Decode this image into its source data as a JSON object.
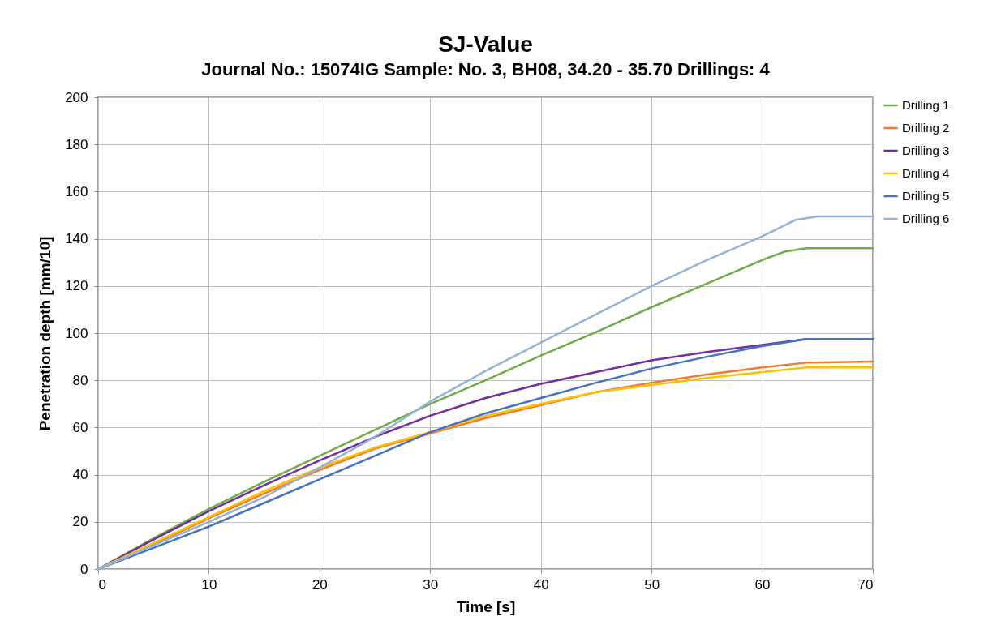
{
  "chart_data": {
    "type": "line",
    "title": "SJ-Value",
    "subtitle": "Journal No.: 15074IG  Sample: No. 3, BH08, 34.20 - 35.70  Drillings: 4",
    "xlabel": "Time [s]",
    "ylabel": "Penetration depth [mm/10]",
    "xlim": [
      0,
      70
    ],
    "xticks": [
      0,
      10,
      20,
      30,
      40,
      50,
      60,
      70
    ],
    "ylim": [
      0,
      200
    ],
    "yticks": [
      0,
      20,
      40,
      60,
      80,
      100,
      120,
      140,
      160,
      180,
      200
    ],
    "grid": true,
    "legend": "right",
    "marker": "none",
    "line_style": "solid",
    "series": [
      {
        "name": "Drilling 1",
        "color": "#70ad47",
        "x": [
          0,
          5,
          10,
          15,
          20,
          25,
          30,
          35,
          40,
          45,
          50,
          55,
          60,
          62,
          64,
          70
        ],
        "values": [
          0,
          13,
          25.5,
          37,
          48,
          59,
          70,
          80,
          90.5,
          100.5,
          111,
          121,
          131,
          134.5,
          136,
          136
        ]
      },
      {
        "name": "Drilling 2",
        "color": "#ed7d31",
        "x": [
          0,
          5,
          10,
          15,
          20,
          25,
          30,
          35,
          40,
          45,
          50,
          55,
          60,
          64,
          70
        ],
        "values": [
          0,
          10.5,
          21.5,
          32,
          42,
          51,
          57.5,
          64,
          69.5,
          75,
          79,
          82.5,
          85.5,
          87.5,
          88
        ]
      },
      {
        "name": "Drilling 3",
        "color": "#7030a0",
        "x": [
          0,
          5,
          10,
          15,
          20,
          25,
          30,
          35,
          40,
          45,
          50,
          55,
          60,
          64,
          70
        ],
        "values": [
          0,
          12.5,
          24.5,
          35.5,
          46,
          56,
          65,
          72.5,
          78.5,
          83.5,
          88.5,
          92,
          95,
          97.5,
          97.5
        ]
      },
      {
        "name": "Drilling 4",
        "color": "#ffc000",
        "x": [
          0,
          5,
          10,
          15,
          20,
          25,
          30,
          35,
          40,
          45,
          50,
          55,
          60,
          64,
          70
        ],
        "values": [
          0,
          11,
          22,
          33,
          43,
          51.5,
          58,
          65,
          70,
          75,
          78,
          81,
          83.5,
          85.5,
          85.5
        ]
      },
      {
        "name": "Drilling 5",
        "color": "#4472c4",
        "x": [
          0,
          5,
          10,
          15,
          20,
          25,
          30,
          35,
          40,
          45,
          50,
          55,
          60,
          64,
          70
        ],
        "values": [
          0,
          9,
          18,
          28,
          38,
          48,
          58,
          66,
          72.5,
          79,
          85,
          90,
          94.5,
          97.5,
          97.5
        ]
      },
      {
        "name": "Drilling 6",
        "color": "#95b3d7",
        "x": [
          0,
          5,
          10,
          15,
          20,
          25,
          30,
          35,
          40,
          45,
          50,
          55,
          60,
          63,
          65,
          70
        ],
        "values": [
          0,
          10,
          20,
          30.5,
          43,
          56,
          71,
          84,
          96,
          108,
          120,
          131,
          141,
          148,
          149.5,
          149.5
        ]
      }
    ]
  }
}
